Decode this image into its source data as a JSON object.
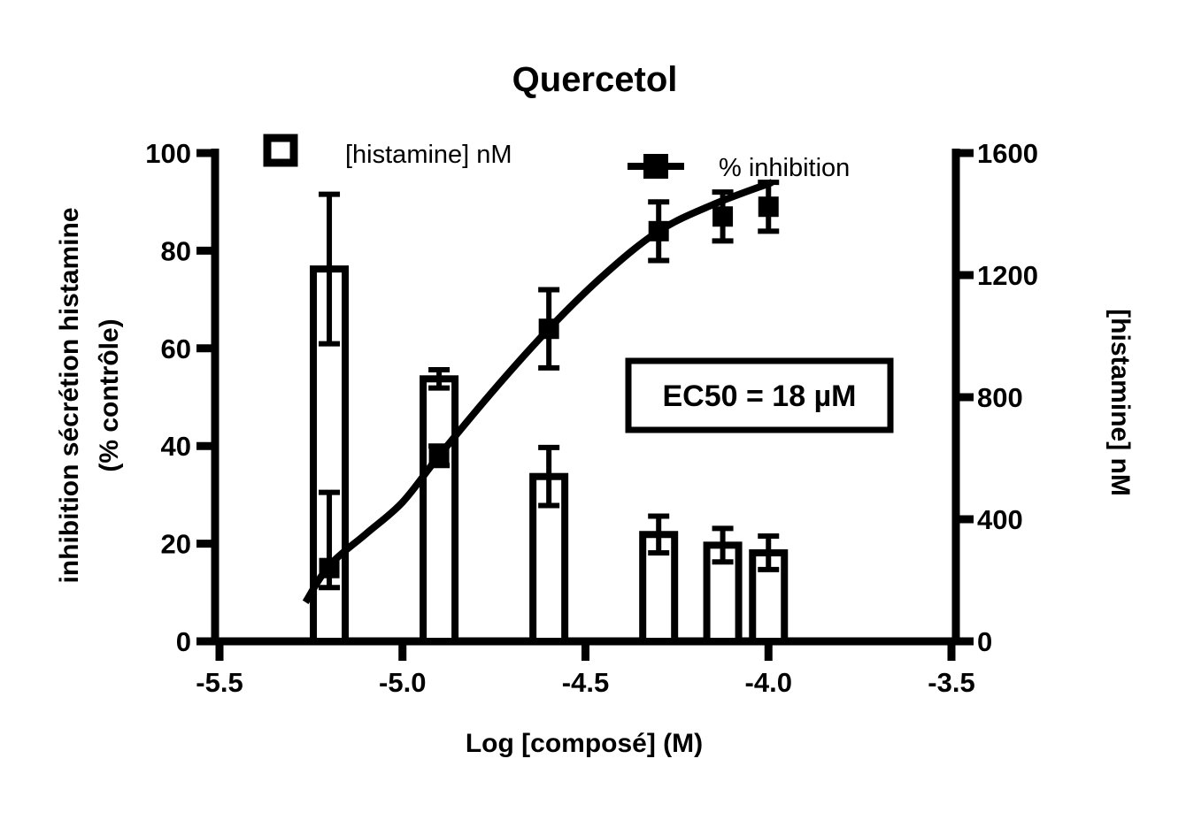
{
  "chart_data": {
    "type": "bar",
    "subtype": "combo-bar-scatter-line",
    "title": "Quercetol",
    "x_axis": {
      "label": "Log [composé] (M)",
      "ticks": [
        "-5.5",
        "-5.0",
        "-4.5",
        "-4.0",
        "-3.5"
      ],
      "tick_values": [
        -5.5,
        -5.0,
        -4.5,
        -4.0,
        -3.5
      ],
      "range": [
        -5.5,
        -3.5
      ]
    },
    "left_y_axis": {
      "label_line1": "inhibition sécrétion histamine",
      "label_line2": "(% contrôle)",
      "ticks": [
        "0",
        "20",
        "40",
        "60",
        "80",
        "100"
      ],
      "tick_values": [
        0,
        20,
        40,
        60,
        80,
        100
      ],
      "range": [
        0,
        100
      ]
    },
    "right_y_axis": {
      "label": "[histamine] nM",
      "ticks": [
        "0",
        "400",
        "800",
        "1200",
        "1600"
      ],
      "tick_values": [
        0,
        400,
        800,
        1200,
        1600
      ],
      "range": [
        0,
        1600
      ]
    },
    "legend": [
      {
        "label": "[histamine] nM",
        "marker": "open-square"
      },
      {
        "label": "% inhibition",
        "marker": "filled-square-on-line"
      }
    ],
    "annotation": {
      "text": "EC50 = 18 µM"
    },
    "grid": false,
    "colors": {
      "foreground": "#000000",
      "background": "#ffffff"
    },
    "series": [
      {
        "name": "[histamine] nM",
        "type": "bar",
        "axis": "right",
        "x": [
          -5.2,
          -4.9,
          -4.6,
          -4.3,
          -4.125,
          -4.0
        ],
        "values": [
          1220,
          860,
          540,
          350,
          315,
          290
        ],
        "errors": [
          245,
          30,
          95,
          60,
          55,
          55
        ]
      },
      {
        "name": "% inhibition",
        "type": "scatter",
        "axis": "left",
        "x": [
          -5.2,
          -4.9,
          -4.6,
          -4.3,
          -4.125,
          -4.0
        ],
        "values": [
          15,
          38,
          64,
          84,
          87,
          89
        ],
        "errors_up": [
          15.5,
          2,
          8,
          6,
          5,
          5
        ],
        "errors_down": [
          4,
          2,
          8,
          6,
          5,
          5
        ]
      },
      {
        "name": "fit-curve",
        "type": "line",
        "axis": "left",
        "points": [
          [
            -5.265,
            8
          ],
          [
            -5.2,
            15.5
          ],
          [
            -5.1,
            22
          ],
          [
            -5.0,
            28.5
          ],
          [
            -4.9,
            38
          ],
          [
            -4.75,
            51.5
          ],
          [
            -4.6,
            64
          ],
          [
            -4.45,
            75
          ],
          [
            -4.3,
            84
          ],
          [
            -4.15,
            89.5
          ],
          [
            -3.99,
            94
          ]
        ]
      }
    ]
  }
}
